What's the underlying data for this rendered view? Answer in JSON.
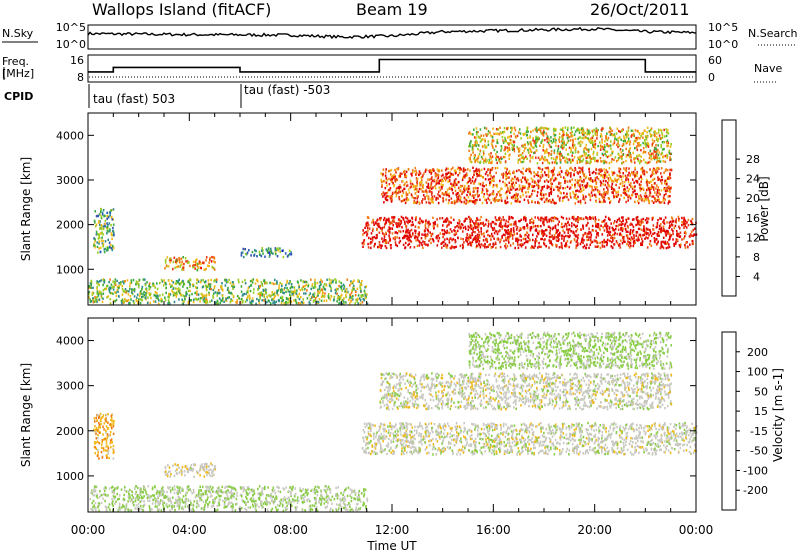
{
  "header": {
    "site": "Wallops Island (fitACF)",
    "beam": "Beam 19",
    "date": "26/Oct/2011"
  },
  "nsky_panel": {
    "left_label": "N.Sky",
    "right_label": "N.Search",
    "left_ticks": [
      "10^5",
      "10^0"
    ],
    "right_ticks": [
      "10^5",
      "10^0"
    ]
  },
  "freq_panel": {
    "left_label_1": "Freq.",
    "left_label_2": "[MHz]",
    "right_label": "Nave",
    "left_ticks": [
      "16",
      "8"
    ],
    "right_ticks": [
      "60",
      "0"
    ]
  },
  "cpid": {
    "label": "CPID",
    "modes": [
      "tau (fast) 503",
      "tau (fast) -503"
    ]
  },
  "x_axis": {
    "label": "Time UT",
    "ticks": [
      "00:00",
      "04:00",
      "08:00",
      "12:00",
      "16:00",
      "20:00",
      "00:00"
    ]
  },
  "y_axis_label": "Slant Range [km]",
  "y_ticks": [
    "1000",
    "2000",
    "3000",
    "4000"
  ],
  "chart_data": [
    {
      "type": "line",
      "name_label": "N.Sky",
      "x_range_hours": [
        0,
        24
      ],
      "x": [
        0,
        4,
        8,
        10,
        12,
        14,
        16,
        18,
        20,
        22,
        24
      ],
      "series": [
        {
          "values": [
            3.2,
            3.0,
            2.9,
            2.5,
            2.7,
            3.6,
            3.8,
            4.0,
            4.2,
            3.6,
            3.4
          ]
        }
      ],
      "ylim": [
        0,
        5
      ],
      "y_scale": "log"
    },
    {
      "type": "line",
      "name_label": "Freq. [MHz]",
      "x": [
        0,
        1,
        1,
        6,
        6,
        11.5,
        11.5,
        22,
        22,
        24
      ],
      "series": [
        {
          "values": [
            10.5,
            10.5,
            12.5,
            12.5,
            10.5,
            10.5,
            16,
            16,
            10.5,
            10.5
          ]
        }
      ],
      "ylim": [
        6,
        18
      ]
    },
    {
      "type": "heatmap",
      "quantity": "Power",
      "colorbar_label": "Power [dB]",
      "colorbar_ticks": [
        "4",
        "8",
        "12",
        "16",
        "20",
        "24",
        "28"
      ],
      "colorbar_range": [
        0,
        30
      ],
      "colorbar_colors": [
        "#1c1ce6",
        "#2a54b8",
        "#2e8a8a",
        "#3aaa3a",
        "#9acc22",
        "#f0b818",
        "#f07a10",
        "#e83010",
        "#e00000"
      ],
      "x_range_hours": [
        0,
        24
      ],
      "ylim": [
        200,
        4500
      ],
      "regions": [
        {
          "x": [
            0,
            11
          ],
          "y": [
            250,
            800
          ],
          "value": 14
        },
        {
          "x": [
            0.2,
            1
          ],
          "y": [
            1400,
            2400
          ],
          "value": 12
        },
        {
          "x": [
            3,
            5
          ],
          "y": [
            1000,
            1300
          ],
          "value": 20
        },
        {
          "x": [
            6,
            8
          ],
          "y": [
            1300,
            1500
          ],
          "value": 10
        },
        {
          "x": [
            10.8,
            24
          ],
          "y": [
            1500,
            2200
          ],
          "value": 28
        },
        {
          "x": [
            11.5,
            23
          ],
          "y": [
            2500,
            3300
          ],
          "value": 24
        },
        {
          "x": [
            15,
            23
          ],
          "y": [
            3400,
            4200
          ],
          "value": 18
        }
      ]
    },
    {
      "type": "heatmap",
      "quantity": "Velocity",
      "colorbar_label": "Velocity [m s-1]",
      "colorbar_ticks": [
        "200",
        "100",
        "50",
        "15",
        "-15",
        "-50",
        "-100",
        "-200"
      ],
      "colorbar_range": [
        -250,
        250
      ],
      "colorbar_colors": [
        "#2838b0",
        "#2870a8",
        "#3a9a3a",
        "#88cc44",
        "#c8c8c0",
        "#f0b818",
        "#f07a10",
        "#e83010",
        "#e00000"
      ],
      "x_range_hours": [
        0,
        24
      ],
      "ylim": [
        200,
        4500
      ],
      "regions": [
        {
          "x": [
            0,
            11
          ],
          "y": [
            250,
            800
          ],
          "value": -30
        },
        {
          "x": [
            0.2,
            1
          ],
          "y": [
            1400,
            2400
          ],
          "value": 60
        },
        {
          "x": [
            3,
            5
          ],
          "y": [
            1000,
            1300
          ],
          "value": 10
        },
        {
          "x": [
            10.8,
            24
          ],
          "y": [
            1500,
            2200
          ],
          "value": 0
        },
        {
          "x": [
            11.5,
            23
          ],
          "y": [
            2500,
            3300
          ],
          "value": 0
        },
        {
          "x": [
            15,
            23
          ],
          "y": [
            3400,
            4200
          ],
          "value": -40
        }
      ]
    }
  ]
}
